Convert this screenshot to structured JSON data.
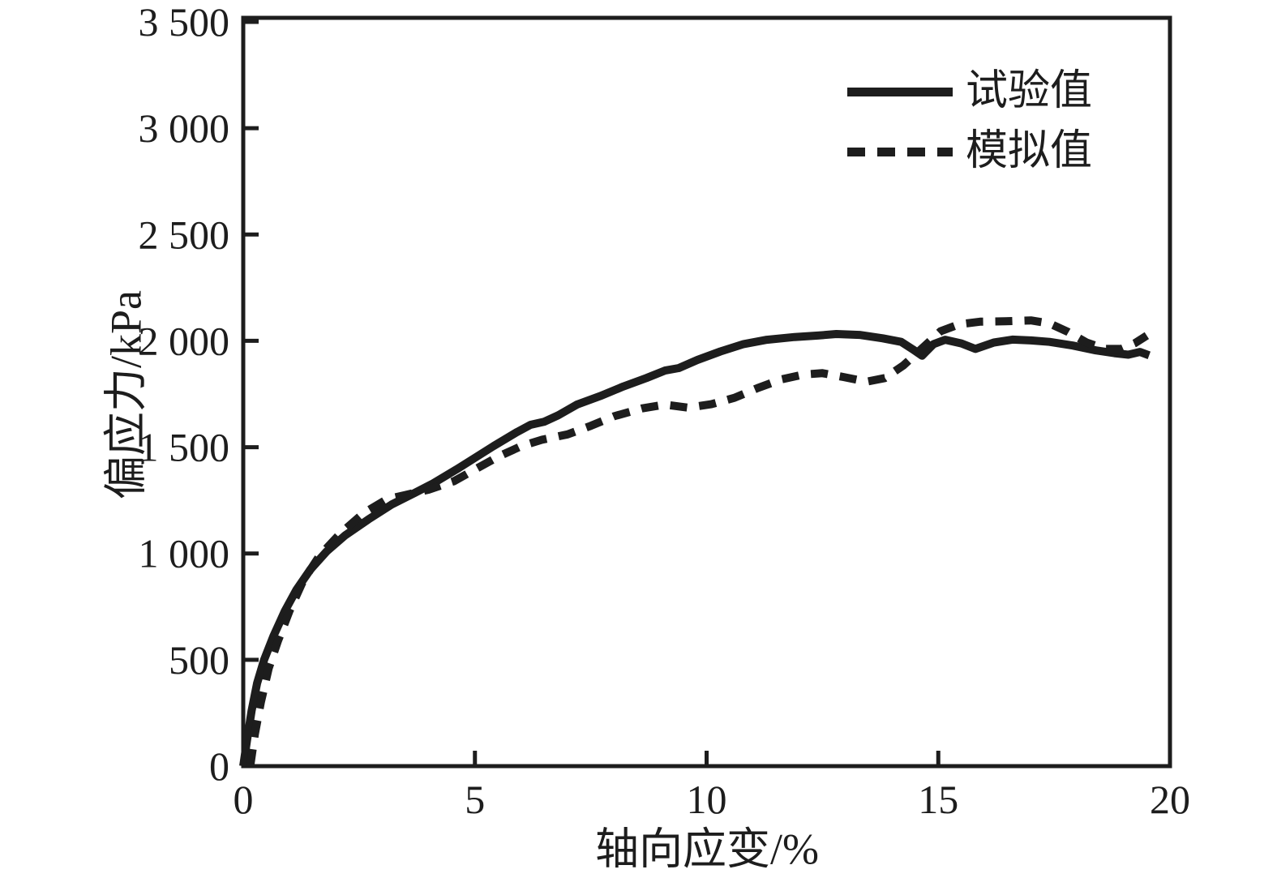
{
  "figure": {
    "background_color": "#ffffff",
    "ink_color": "#1d1d1d"
  },
  "chart_data": {
    "type": "line",
    "title": "",
    "xlabel": "轴向应变/%",
    "ylabel": "偏应力/kPa",
    "xlim": [
      0,
      20
    ],
    "ylim": [
      0,
      3500
    ],
    "grid": false,
    "legend_position": "upper-right-inside",
    "x_ticks": [
      0,
      5,
      10,
      15,
      20
    ],
    "x_tick_labels": [
      "0",
      "5",
      "10",
      "15",
      "20"
    ],
    "y_ticks": [
      0,
      500,
      1000,
      1500,
      2000,
      2500,
      3000,
      3500
    ],
    "y_tick_labels": [
      "0",
      "500",
      "1 000",
      "1 500",
      "2 000",
      "2 500",
      "3 000",
      "3 500"
    ],
    "series": [
      {
        "name": "试验值",
        "style": "solid",
        "color": "#1d1d1d",
        "points": [
          [
            0,
            0
          ],
          [
            0.08,
            120
          ],
          [
            0.18,
            260
          ],
          [
            0.3,
            390
          ],
          [
            0.45,
            500
          ],
          [
            0.65,
            610
          ],
          [
            0.9,
            730
          ],
          [
            1.15,
            830
          ],
          [
            1.45,
            925
          ],
          [
            1.8,
            1010
          ],
          [
            2.2,
            1085
          ],
          [
            2.7,
            1160
          ],
          [
            3.2,
            1230
          ],
          [
            3.7,
            1285
          ],
          [
            4.1,
            1330
          ],
          [
            4.6,
            1395
          ],
          [
            5.0,
            1450
          ],
          [
            5.4,
            1505
          ],
          [
            5.9,
            1570
          ],
          [
            6.2,
            1605
          ],
          [
            6.5,
            1620
          ],
          [
            6.8,
            1650
          ],
          [
            7.2,
            1700
          ],
          [
            7.7,
            1740
          ],
          [
            8.2,
            1785
          ],
          [
            8.7,
            1825
          ],
          [
            9.1,
            1860
          ],
          [
            9.4,
            1872
          ],
          [
            9.8,
            1910
          ],
          [
            10.3,
            1950
          ],
          [
            10.8,
            1985
          ],
          [
            11.3,
            2005
          ],
          [
            11.9,
            2018
          ],
          [
            12.4,
            2025
          ],
          [
            12.8,
            2032
          ],
          [
            13.3,
            2028
          ],
          [
            13.8,
            2012
          ],
          [
            14.2,
            1995
          ],
          [
            14.45,
            1960
          ],
          [
            14.65,
            1930
          ],
          [
            14.9,
            1985
          ],
          [
            15.15,
            2005
          ],
          [
            15.5,
            1988
          ],
          [
            15.8,
            1962
          ],
          [
            16.2,
            1992
          ],
          [
            16.6,
            2006
          ],
          [
            17.0,
            2002
          ],
          [
            17.4,
            1995
          ],
          [
            17.9,
            1978
          ],
          [
            18.4,
            1955
          ],
          [
            18.8,
            1942
          ],
          [
            19.1,
            1935
          ],
          [
            19.35,
            1948
          ],
          [
            19.55,
            1932
          ]
        ]
      },
      {
        "name": "模拟值",
        "style": "dashed",
        "color": "#1d1d1d",
        "points": [
          [
            0.15,
            0
          ],
          [
            0.25,
            150
          ],
          [
            0.38,
            300
          ],
          [
            0.55,
            460
          ],
          [
            0.75,
            590
          ],
          [
            1.0,
            730
          ],
          [
            1.3,
            875
          ],
          [
            1.65,
            990
          ],
          [
            2.1,
            1095
          ],
          [
            2.6,
            1190
          ],
          [
            3.1,
            1255
          ],
          [
            3.5,
            1275
          ],
          [
            4.0,
            1300
          ],
          [
            4.55,
            1340
          ],
          [
            5.0,
            1395
          ],
          [
            5.5,
            1455
          ],
          [
            6.0,
            1505
          ],
          [
            6.45,
            1535
          ],
          [
            7.0,
            1560
          ],
          [
            7.5,
            1600
          ],
          [
            8.0,
            1645
          ],
          [
            8.6,
            1682
          ],
          [
            9.1,
            1700
          ],
          [
            9.6,
            1686
          ],
          [
            10.1,
            1702
          ],
          [
            10.6,
            1732
          ],
          [
            11.1,
            1778
          ],
          [
            11.6,
            1818
          ],
          [
            12.1,
            1842
          ],
          [
            12.5,
            1848
          ],
          [
            12.95,
            1830
          ],
          [
            13.45,
            1808
          ],
          [
            13.85,
            1825
          ],
          [
            14.25,
            1885
          ],
          [
            14.7,
            1975
          ],
          [
            15.05,
            2045
          ],
          [
            15.45,
            2078
          ],
          [
            15.9,
            2090
          ],
          [
            16.45,
            2092
          ],
          [
            17.0,
            2096
          ],
          [
            17.4,
            2082
          ],
          [
            17.8,
            2042
          ],
          [
            18.2,
            1992
          ],
          [
            18.6,
            1962
          ],
          [
            18.95,
            1962
          ],
          [
            19.25,
            1990
          ],
          [
            19.5,
            2025
          ]
        ]
      }
    ]
  }
}
